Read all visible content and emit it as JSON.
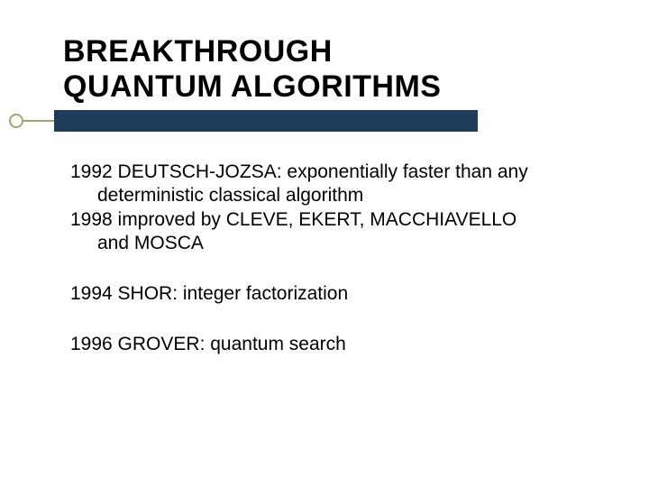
{
  "title_line1": "BREAKTHROUGH",
  "title_line2": "QUANTUM ALGORITHMS",
  "rule": {
    "bar_color": "#1f3c5a",
    "accent_color": "#9aa86b"
  },
  "entries": [
    {
      "line1": "1992 DEUTSCH-JOZSA: exponentially faster than any",
      "cont1": "deterministic classical algorithm",
      "line2": "1998 improved by CLEVE, EKERT, MACCHIAVELLO",
      "cont2": "and MOSCA"
    },
    {
      "line1": "1994 SHOR: integer factorization"
    },
    {
      "line1": "1996 GROVER: quantum search"
    }
  ],
  "typography": {
    "title_fontsize": 34,
    "body_fontsize": 21,
    "title_color": "#000000",
    "body_color": "#000000",
    "font_family": "Arial"
  },
  "background_color": "#ffffff"
}
